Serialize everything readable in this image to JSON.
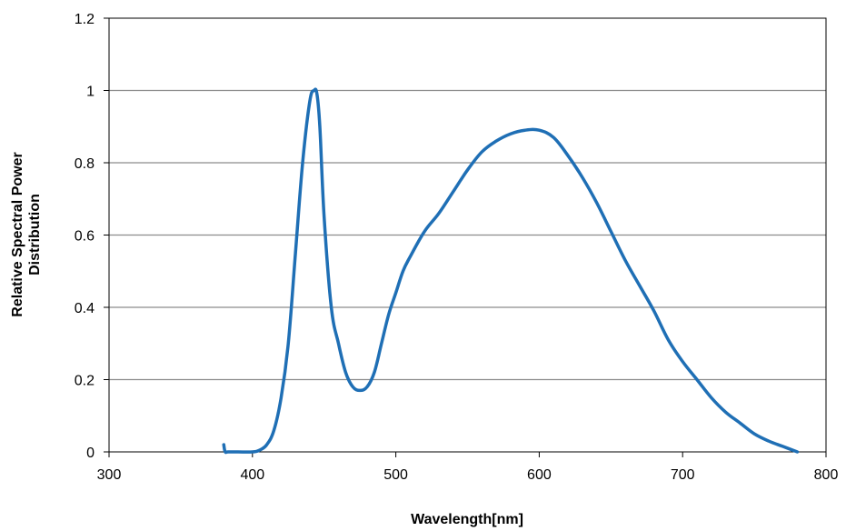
{
  "chart_data": {
    "type": "line",
    "title": "",
    "xlabel": "Wavelength[nm]",
    "ylabel": [
      "Relative Spectral Power",
      "Distribution"
    ],
    "xlim": [
      300,
      800
    ],
    "ylim": [
      0,
      1.2
    ],
    "xticks": [
      300,
      400,
      500,
      600,
      700,
      800
    ],
    "yticks": [
      0,
      0.2,
      0.4,
      0.6,
      0.8,
      1,
      1.2
    ],
    "xtick_labels": [
      "300",
      "400",
      "500",
      "600",
      "700",
      "800"
    ],
    "ytick_labels": [
      "0",
      "0.2",
      "0.4",
      "0.6",
      "0.8",
      "1",
      "1.2"
    ],
    "grid": "horizontal",
    "legend": "none",
    "series": [
      {
        "color": "#1f6fb5",
        "x": [
          380,
          381,
          383,
          390,
          400,
          405,
          410,
          415,
          420,
          425,
          430,
          435,
          440,
          443,
          445,
          447,
          450,
          455,
          460,
          465,
          470,
          475,
          480,
          485,
          490,
          495,
          500,
          505,
          510,
          520,
          530,
          540,
          550,
          560,
          570,
          580,
          590,
          600,
          610,
          620,
          630,
          640,
          650,
          660,
          670,
          680,
          690,
          700,
          710,
          720,
          730,
          740,
          750,
          760,
          770,
          780
        ],
        "y": [
          0.02,
          0.0,
          0.0,
          0.0,
          0.0,
          0.005,
          0.02,
          0.06,
          0.15,
          0.3,
          0.55,
          0.8,
          0.97,
          1.0,
          0.99,
          0.9,
          0.65,
          0.4,
          0.3,
          0.22,
          0.18,
          0.17,
          0.18,
          0.22,
          0.3,
          0.38,
          0.44,
          0.5,
          0.54,
          0.61,
          0.66,
          0.72,
          0.78,
          0.83,
          0.86,
          0.88,
          0.89,
          0.89,
          0.87,
          0.82,
          0.76,
          0.69,
          0.61,
          0.53,
          0.46,
          0.39,
          0.31,
          0.25,
          0.2,
          0.15,
          0.11,
          0.08,
          0.05,
          0.03,
          0.015,
          0.0
        ]
      }
    ]
  }
}
